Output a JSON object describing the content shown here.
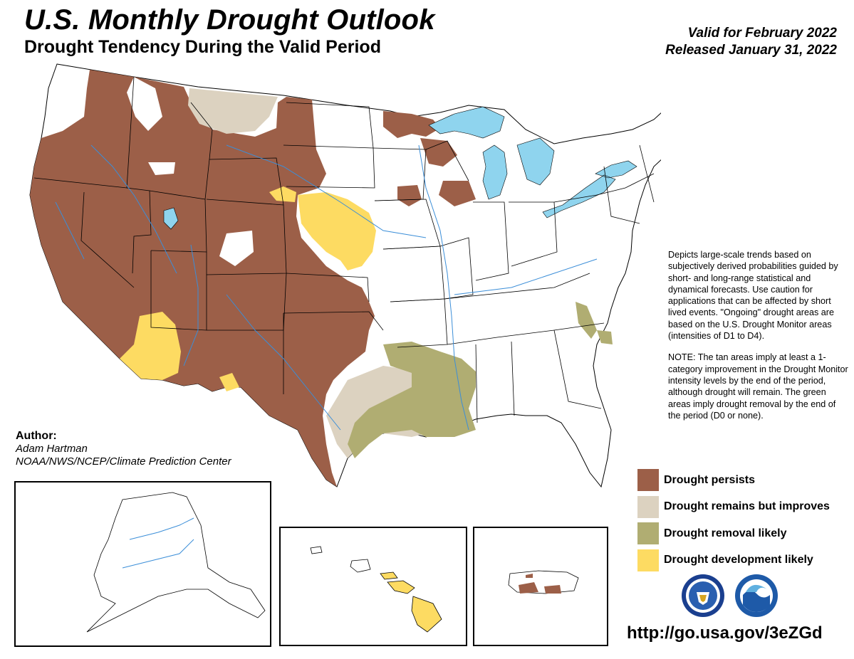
{
  "header": {
    "title": "U.S. Monthly Drought Outlook",
    "subtitle": "Drought Tendency During the Valid Period",
    "valid_for": "Valid for February 2022",
    "released": "Released January 31, 2022"
  },
  "description": {
    "para1": "Depicts large-scale trends based on subjectively derived probabilities guided by short- and long-range statistical and dynamical forecasts. Use caution for applications that can be affected by short lived events. \"Ongoing\" drought areas are based on the U.S. Drought Monitor areas (intensities of D1 to D4).",
    "para2": "NOTE: The tan areas imply at least a 1-category improvement in the Drought Monitor intensity levels by the end of the period, although drought will remain. The green areas imply drought removal by the end of the period (D0 or none)."
  },
  "legend": [
    {
      "label": "Drought persists",
      "color": "#9c5f48"
    },
    {
      "label": "Drought remains but improves",
      "color": "#dcd2c0"
    },
    {
      "label": "Drought removal likely",
      "color": "#b0ad72"
    },
    {
      "label": "Drought development likely",
      "color": "#fddb62"
    }
  ],
  "author": {
    "label": "Author:",
    "name": "Adam Hartman",
    "org": "NOAA/NWS/NCEP/Climate Prediction Center"
  },
  "url": "http://go.usa.gov/3eZGd",
  "colors": {
    "water": "#8fd4ee",
    "river": "#3b8ed8",
    "border": "#000000"
  },
  "icons": [
    "doc-seal-icon",
    "noaa-logo-icon"
  ]
}
